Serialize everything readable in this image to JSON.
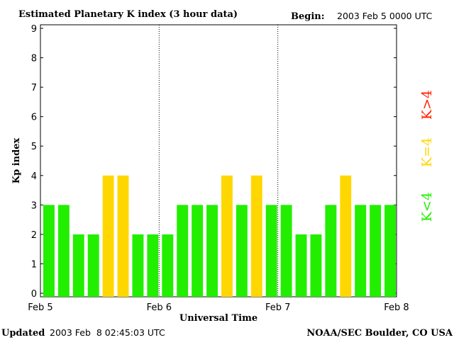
{
  "header": {
    "title": "Estimated Planetary K index (3 hour data)",
    "begin_label": "Begin:",
    "begin_value": "2003 Feb 5 0000 UTC"
  },
  "footer": {
    "updated_label": "Updated",
    "updated_value": "2003 Feb  8 02:45:03 UTC",
    "source": "NOAA/SEC Boulder, CO USA"
  },
  "legend": {
    "high": {
      "label": "K>4",
      "color": "#ff2200"
    },
    "equal": {
      "label": "K=4",
      "color": "#ffd700"
    },
    "low": {
      "label": "K<4",
      "color": "#22ee00"
    }
  },
  "chart_data": {
    "type": "bar",
    "ylabel": "Kp index",
    "xlabel": "Universal Time",
    "ylim": [
      0,
      9
    ],
    "yticks": [
      "0",
      "1",
      "2",
      "3",
      "4",
      "5",
      "6",
      "7",
      "8",
      "9"
    ],
    "xtick_labels": [
      "Feb 5",
      "Feb 6",
      "Feb 7",
      "Feb 8"
    ],
    "day_dividers": [
      1,
      2
    ],
    "values": [
      3,
      3,
      2,
      2,
      4,
      4,
      2,
      2,
      2,
      3,
      3,
      3,
      4,
      3,
      4,
      3,
      3,
      2,
      2,
      3,
      4,
      3,
      3,
      3
    ],
    "colors": {
      "low": "#22ee00",
      "equal": "#ffd700",
      "high": "#ff2200"
    }
  }
}
